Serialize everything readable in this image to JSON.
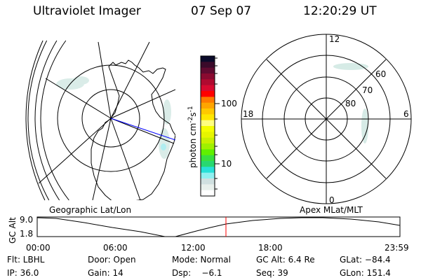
{
  "header": {
    "instrument": "Ultraviolet Imager",
    "date": "07 Sep 07",
    "time": "12:20:29 UT"
  },
  "colorbar": {
    "label": "photon cm",
    "label_sup1": "-2",
    "label_s": "s",
    "label_sup2": "-1",
    "ticks": [
      "100",
      "10"
    ],
    "colors": [
      "#0a0a2a",
      "#3a0a2a",
      "#600a30",
      "#8a0a30",
      "#b00a30",
      "#d80a30",
      "#ff0000",
      "#ff7a00",
      "#ffa500",
      "#ffc800",
      "#ffe600",
      "#ffff80",
      "#f5ff00",
      "#e6f500",
      "#c8f000",
      "#a0f000",
      "#60f000",
      "#38e040",
      "#28d870",
      "#28e0d8",
      "#90f0f0",
      "#d0e0e0",
      "#e8f0ec",
      "#ffffff"
    ]
  },
  "left_map": {
    "caption": "Geographic Lat/Lon"
  },
  "right_map": {
    "caption": "Apex MLat/MLT",
    "mlt_labels": {
      "top": "12",
      "right": "6",
      "bottom": "0",
      "left": "18"
    },
    "lat_labels": [
      "60",
      "70",
      "80"
    ]
  },
  "timeline": {
    "ylabel": "GC Alt",
    "y_ticks": [
      "9.0",
      "1.8"
    ],
    "x_ticks": [
      "00:00",
      "06:00",
      "12:00",
      "18:00",
      "23:59"
    ],
    "current_time_marker": "12:20",
    "marker_color": "#ff0000"
  },
  "info": {
    "row1": [
      "Flt: LBHL",
      "Door: Open",
      "Mode: Normal",
      "GC Alt: 6.4 Re",
      "GLat: −84.4"
    ],
    "row2": [
      "IP: 36.0",
      "Gain: 14",
      "Dsp:    −6.1",
      "Seq: 39",
      "GLon: 151.4"
    ]
  }
}
